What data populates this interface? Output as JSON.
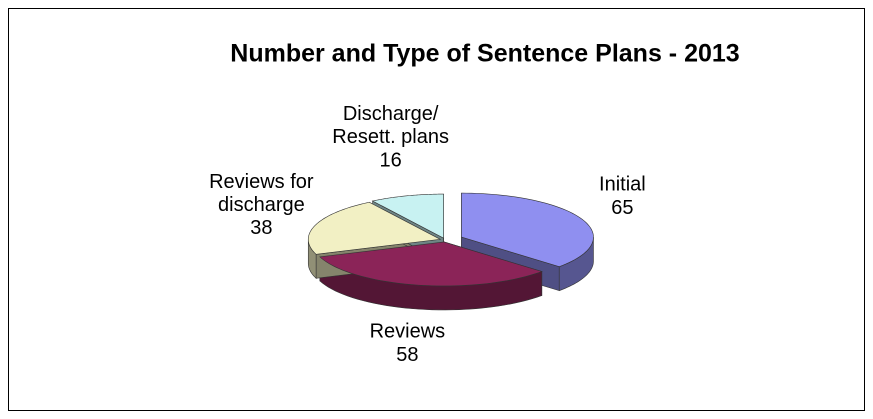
{
  "chart_data": {
    "type": "pie",
    "title": "Number and Type of Sentence Plans - 2013",
    "categories": [
      "Initial",
      "Reviews",
      "Reviews  for\ndischarge",
      "Discharge/\nResett. plans"
    ],
    "values": [
      65,
      58,
      38,
      16
    ],
    "colors": [
      "#8f8ff0",
      "#8b2458",
      "#f2f0c4",
      "#c8f2f2"
    ]
  }
}
